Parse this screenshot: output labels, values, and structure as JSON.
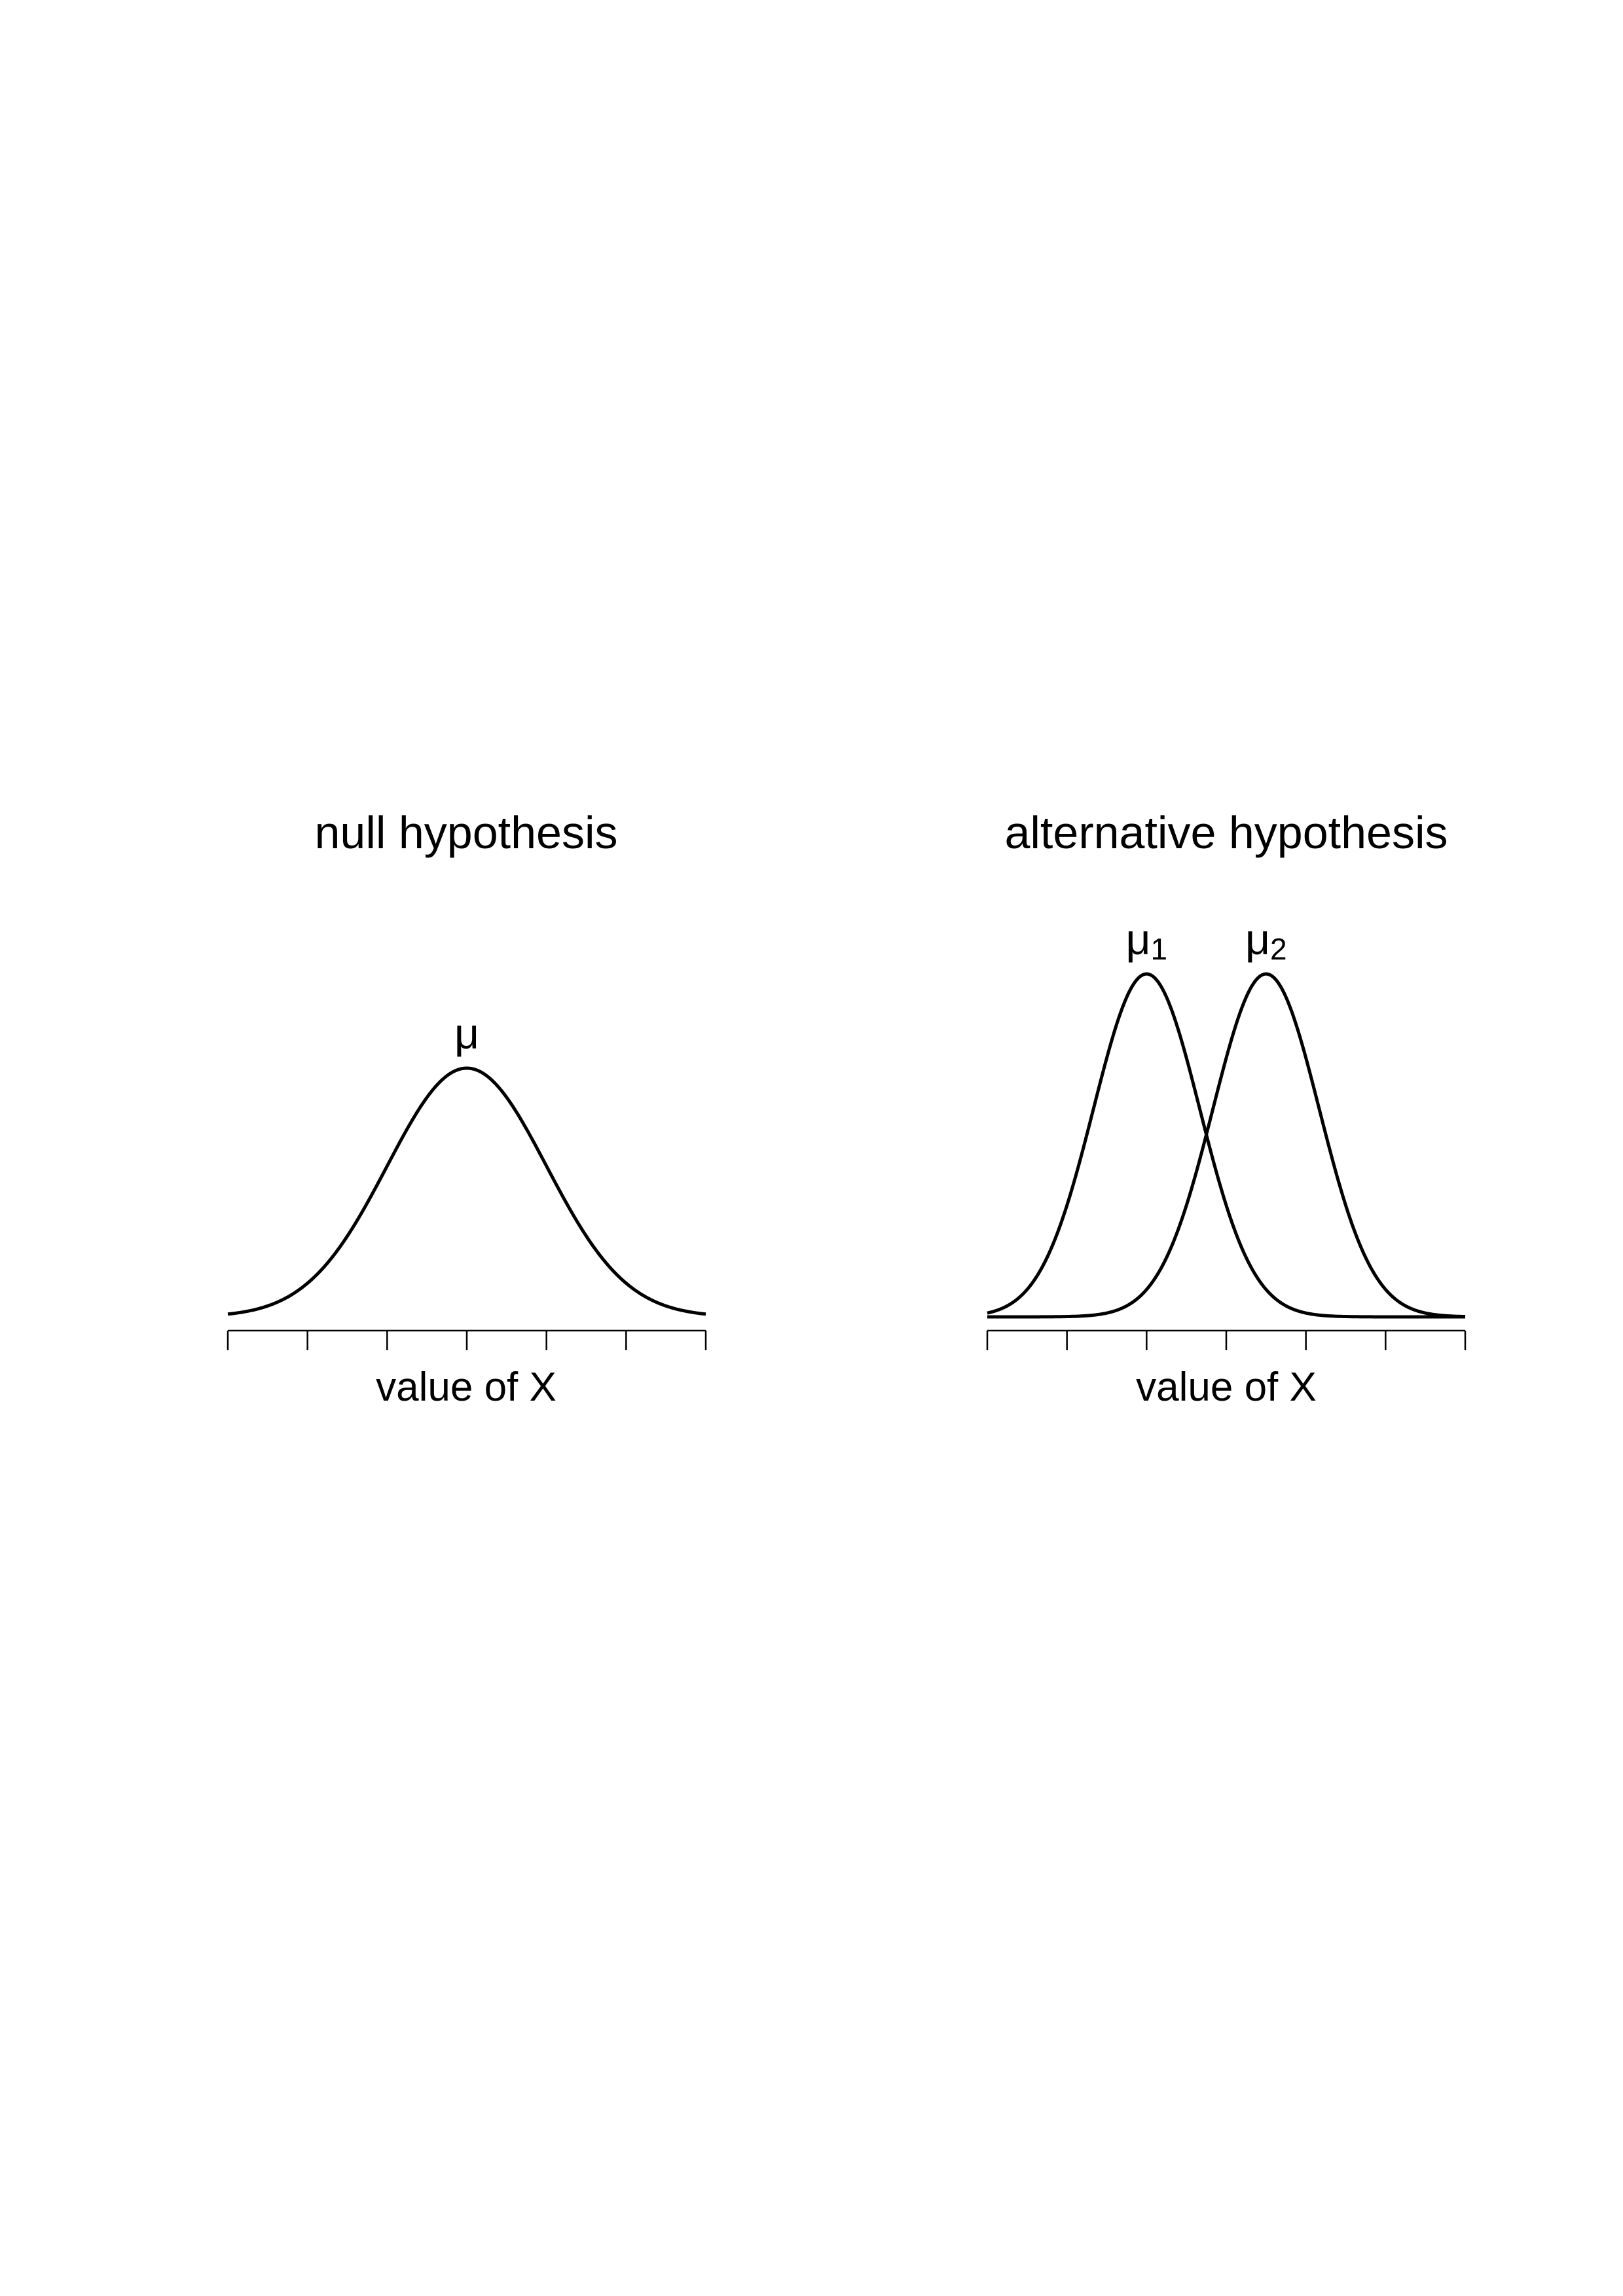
{
  "chart_data": [
    {
      "type": "line",
      "title": "null hypothesis",
      "xlabel": "value of X",
      "ylabel": "",
      "xlim": [
        -3,
        3
      ],
      "x_ticks": [
        -3,
        -2,
        -1,
        0,
        1,
        2,
        3
      ],
      "x_tick_labels_shown": false,
      "y_axis_shown": false,
      "grid": false,
      "series": [
        {
          "mean": 0,
          "sd": 1,
          "peak_label": "μ",
          "peak_subscript": ""
        }
      ],
      "line_color": "#000000"
    },
    {
      "type": "line",
      "title": "alternative hypothesis",
      "xlabel": "value of X",
      "ylabel": "",
      "xlim": [
        -3,
        3
      ],
      "x_ticks": [
        -3,
        -2,
        -1,
        0,
        1,
        2,
        3
      ],
      "x_tick_labels_shown": false,
      "y_axis_shown": false,
      "grid": false,
      "series": [
        {
          "mean": -1,
          "sd": 0.667,
          "peak_label": "μ",
          "peak_subscript": "1"
        },
        {
          "mean": 0.5,
          "sd": 0.667,
          "peak_label": "μ",
          "peak_subscript": "2"
        }
      ],
      "line_color": "#000000"
    }
  ]
}
